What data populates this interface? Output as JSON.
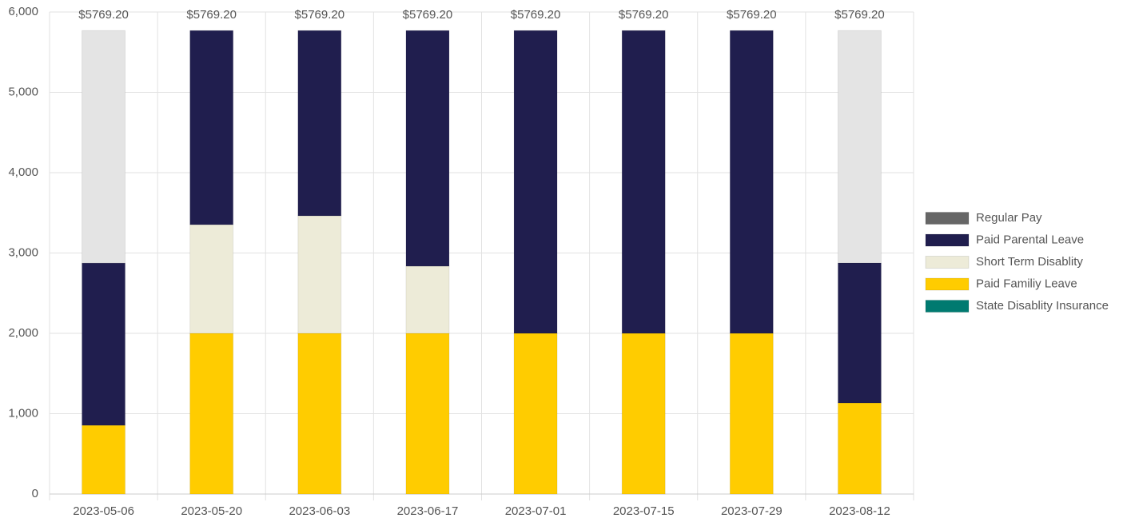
{
  "chart_data": {
    "type": "stacked_bar",
    "categories": [
      "2023-05-06",
      "2023-05-20",
      "2023-06-03",
      "2023-06-17",
      "2023-07-01",
      "2023-07-15",
      "2023-07-29",
      "2023-08-12"
    ],
    "series": [
      {
        "name": null,
        "color": "#e4e4e4",
        "values": [
          2894,
          0,
          0,
          0,
          0,
          0,
          0,
          2893
        ]
      },
      {
        "name": "Regular Pay",
        "color": "#666666",
        "values": [
          0,
          0,
          0,
          0,
          0,
          0,
          0,
          0
        ]
      },
      {
        "name": "Paid Parental Leave",
        "color": "#201e4e",
        "values": [
          2020,
          2416,
          2306,
          2933,
          3769.2,
          3769.2,
          3769.2,
          1742
        ]
      },
      {
        "name": "Short Term Disablity",
        "color": "#edebd8",
        "values": [
          0,
          1353,
          1463,
          836,
          0,
          0,
          0,
          0
        ]
      },
      {
        "name": "Paid Familiy Leave",
        "color": "#ffcc00",
        "values": [
          855,
          2000,
          2000,
          2000,
          2000,
          2000,
          2000,
          1134
        ]
      },
      {
        "name": "State Disablity Insurance",
        "color": "#007a70",
        "values": [
          0,
          0,
          0,
          0,
          0,
          0,
          0,
          0
        ]
      }
    ],
    "totals": [
      5769.2,
      5769.2,
      5769.2,
      5769.2,
      5769.2,
      5769.2,
      5769.2,
      5769.2
    ],
    "total_labels": [
      "$5769.20",
      "$5769.20",
      "$5769.20",
      "$5769.20",
      "$5769.20",
      "$5769.20",
      "$5769.20",
      "$5769.20"
    ],
    "ylim": [
      0,
      6000
    ],
    "yticks": [
      0,
      {
        "value": 1000,
        "label": "1,000"
      },
      {
        "value": 2000,
        "label": "2,000"
      },
      {
        "value": 3000,
        "label": "3,000"
      },
      {
        "value": 4000,
        "label": "4,000"
      },
      {
        "value": 5000,
        "label": "5,000"
      },
      {
        "value": 6000,
        "label": "6,000"
      }
    ],
    "grid": true,
    "legend": "right"
  }
}
